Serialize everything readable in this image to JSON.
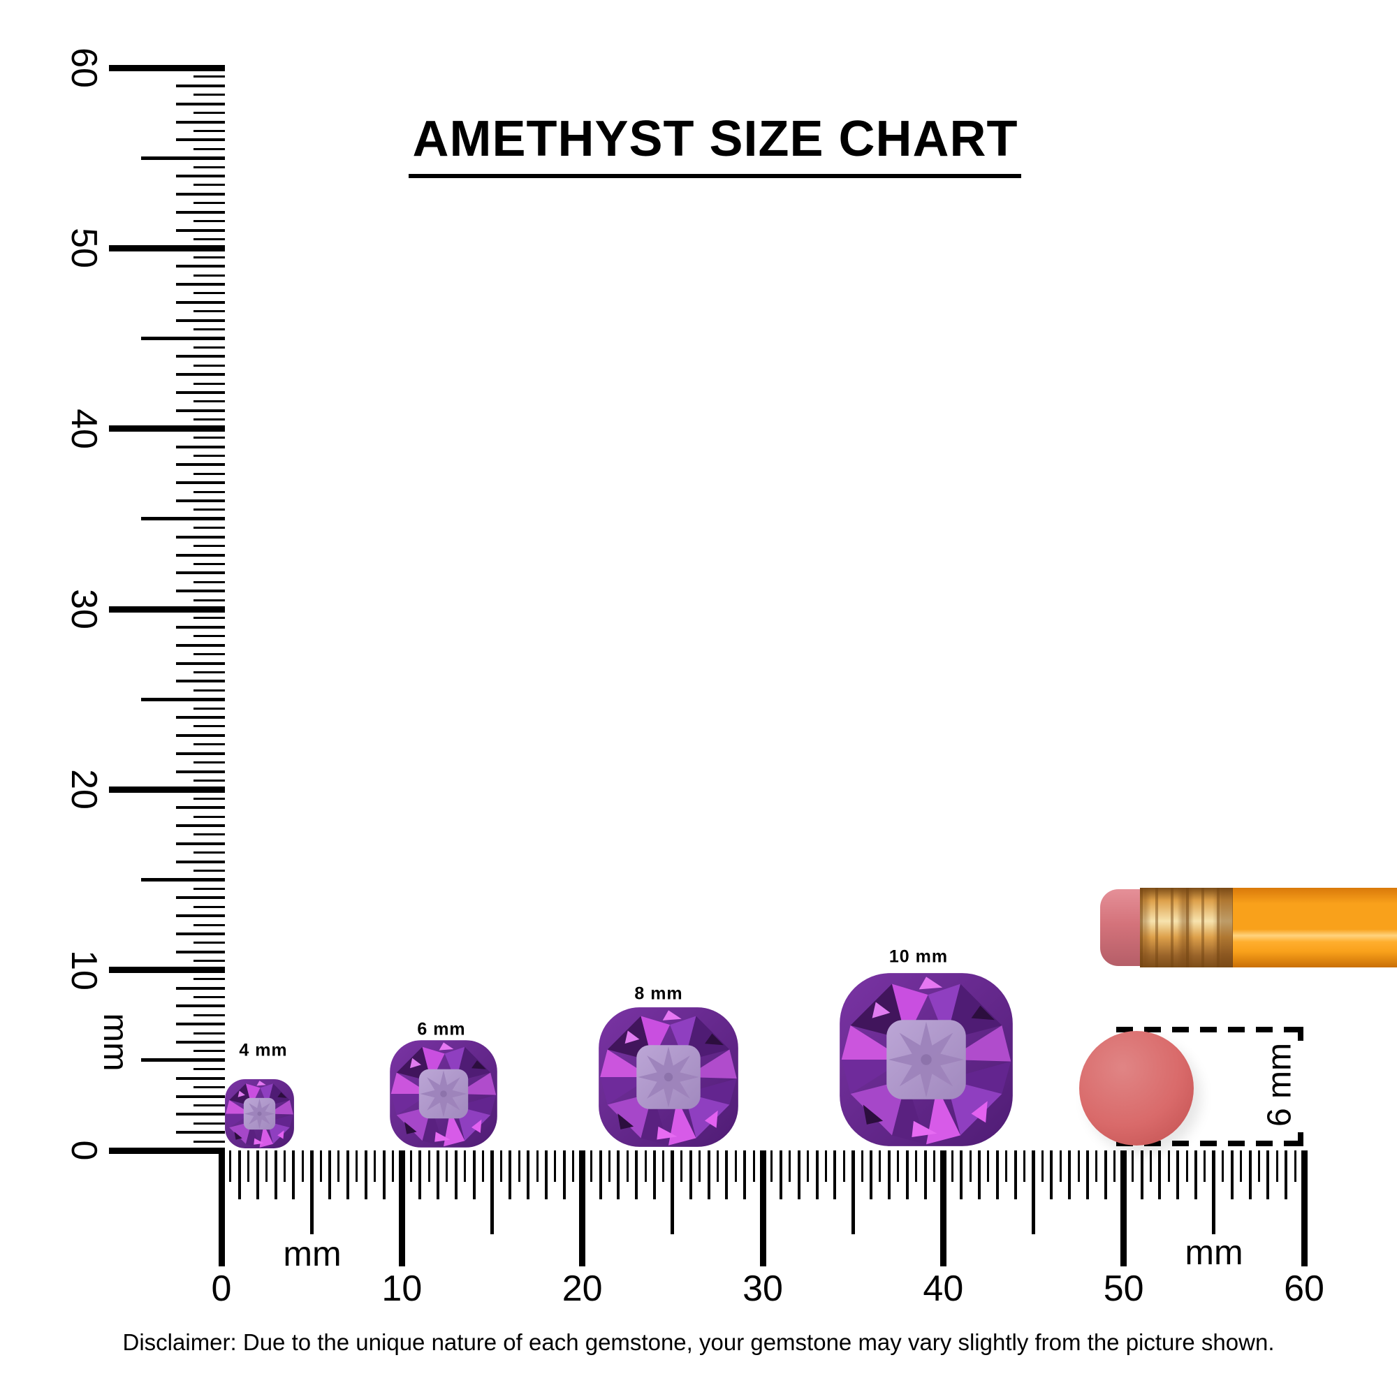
{
  "title": {
    "text": "AMETHYST SIZE CHART"
  },
  "rulers": {
    "unit_label": "mm",
    "tick_labels": [
      "0",
      "10",
      "20",
      "30",
      "40",
      "50",
      "60"
    ],
    "range_mm": [
      0,
      60
    ],
    "minor_step_mm": 0.5
  },
  "gems": [
    {
      "label": "4 mm",
      "size_mm": 4
    },
    {
      "label": "6 mm",
      "size_mm": 6
    },
    {
      "label": "8 mm",
      "size_mm": 8
    },
    {
      "label": "10 mm",
      "size_mm": 10
    }
  ],
  "reference_objects": {
    "pencil": {
      "icon": "pencil-with-eraser"
    },
    "eraser_dot": {
      "icon": "round-eraser-dot",
      "diameter_label": "6 mm"
    }
  },
  "disclaimer": {
    "text": "Disclaimer: Due to the unique nature of each gemstone, your gemstone may vary slightly from the picture shown."
  },
  "colors": {
    "background": "#ffffff",
    "ink": "#000000",
    "amethyst-base": "#7a34a4",
    "amethyst-dark": "#41155c",
    "amethyst-deep": "#4f1c74",
    "amethyst-mid": "#8f3fc0",
    "magenta": "#c94fe0",
    "magenta-bright": "#d75be8",
    "table-light": "#bca6d6",
    "table-mid": "#a189be",
    "star": "#9d83bb",
    "pencil-body": "#f9a11b",
    "pencil-body-dark": "#d9790a",
    "pencil-highlight": "#ffd37e",
    "ferrule-gold": "#dda04a",
    "ferrule-light": "#f7e3ae",
    "ferrule-dark": "#7c4d18",
    "eraser-pink": "#d4737b",
    "eraser-pink-light": "#e59098",
    "eraser-pink-dark": "#b55e68",
    "dot-red": "#d96a6a",
    "dot-red-light": "#e08585",
    "dot-red-dark": "#c25151"
  }
}
